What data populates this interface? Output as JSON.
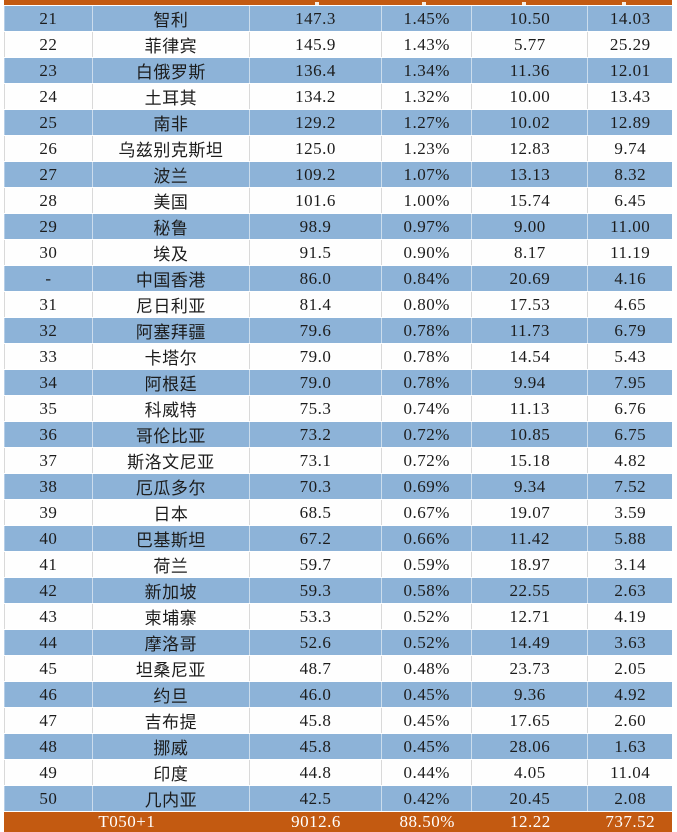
{
  "colors": {
    "row_blue": "#8db3d8",
    "row_white": "#fefefe",
    "total_orange": "#c35a11",
    "text": "#1c1c1c",
    "separator": "#d9d9d9",
    "total_text": "#ffffff"
  },
  "chart_data": {
    "type": "table",
    "columns_visible_headers": [],
    "rows": [
      [
        "21",
        "智利",
        "147.3",
        "1.45%",
        "10.50",
        "14.03"
      ],
      [
        "22",
        "菲律宾",
        "145.9",
        "1.43%",
        "5.77",
        "25.29"
      ],
      [
        "23",
        "白俄罗斯",
        "136.4",
        "1.34%",
        "11.36",
        "12.01"
      ],
      [
        "24",
        "土耳其",
        "134.2",
        "1.32%",
        "10.00",
        "13.43"
      ],
      [
        "25",
        "南非",
        "129.2",
        "1.27%",
        "10.02",
        "12.89"
      ],
      [
        "26",
        "乌兹别克斯坦",
        "125.0",
        "1.23%",
        "12.83",
        "9.74"
      ],
      [
        "27",
        "波兰",
        "109.2",
        "1.07%",
        "13.13",
        "8.32"
      ],
      [
        "28",
        "美国",
        "101.6",
        "1.00%",
        "15.74",
        "6.45"
      ],
      [
        "29",
        "秘鲁",
        "98.9",
        "0.97%",
        "9.00",
        "11.00"
      ],
      [
        "30",
        "埃及",
        "91.5",
        "0.90%",
        "8.17",
        "11.19"
      ],
      [
        "-",
        "中国香港",
        "86.0",
        "0.84%",
        "20.69",
        "4.16"
      ],
      [
        "31",
        "尼日利亚",
        "81.4",
        "0.80%",
        "17.53",
        "4.65"
      ],
      [
        "32",
        "阿塞拜疆",
        "79.6",
        "0.78%",
        "11.73",
        "6.79"
      ],
      [
        "33",
        "卡塔尔",
        "79.0",
        "0.78%",
        "14.54",
        "5.43"
      ],
      [
        "34",
        "阿根廷",
        "79.0",
        "0.78%",
        "9.94",
        "7.95"
      ],
      [
        "35",
        "科威特",
        "75.3",
        "0.74%",
        "11.13",
        "6.76"
      ],
      [
        "36",
        "哥伦比亚",
        "73.2",
        "0.72%",
        "10.85",
        "6.75"
      ],
      [
        "37",
        "斯洛文尼亚",
        "73.1",
        "0.72%",
        "15.18",
        "4.82"
      ],
      [
        "38",
        "厄瓜多尔",
        "70.3",
        "0.69%",
        "9.34",
        "7.52"
      ],
      [
        "39",
        "日本",
        "68.5",
        "0.67%",
        "19.07",
        "3.59"
      ],
      [
        "40",
        "巴基斯坦",
        "67.2",
        "0.66%",
        "11.42",
        "5.88"
      ],
      [
        "41",
        "荷兰",
        "59.7",
        "0.59%",
        "18.97",
        "3.14"
      ],
      [
        "42",
        "新加坡",
        "59.3",
        "0.58%",
        "22.55",
        "2.63"
      ],
      [
        "43",
        "柬埔寨",
        "53.3",
        "0.52%",
        "12.71",
        "4.19"
      ],
      [
        "44",
        "摩洛哥",
        "52.6",
        "0.52%",
        "14.49",
        "3.63"
      ],
      [
        "45",
        "坦桑尼亚",
        "48.7",
        "0.48%",
        "23.73",
        "2.05"
      ],
      [
        "46",
        "约旦",
        "46.0",
        "0.45%",
        "9.36",
        "4.92"
      ],
      [
        "47",
        "吉布提",
        "45.8",
        "0.45%",
        "17.65",
        "2.60"
      ],
      [
        "48",
        "挪威",
        "45.8",
        "0.45%",
        "28.06",
        "1.63"
      ],
      [
        "49",
        "印度",
        "44.8",
        "0.44%",
        "4.05",
        "11.04"
      ],
      [
        "50",
        "几内亚",
        "42.5",
        "0.42%",
        "20.45",
        "2.08"
      ]
    ],
    "total_row": [
      "T050+1",
      "9012.6",
      "88.50%",
      "12.22",
      "737.52"
    ],
    "first_row_shade": "blue",
    "shading": "alternating blue/white",
    "notes": "orange sliver of a cut-off header row at very top"
  }
}
